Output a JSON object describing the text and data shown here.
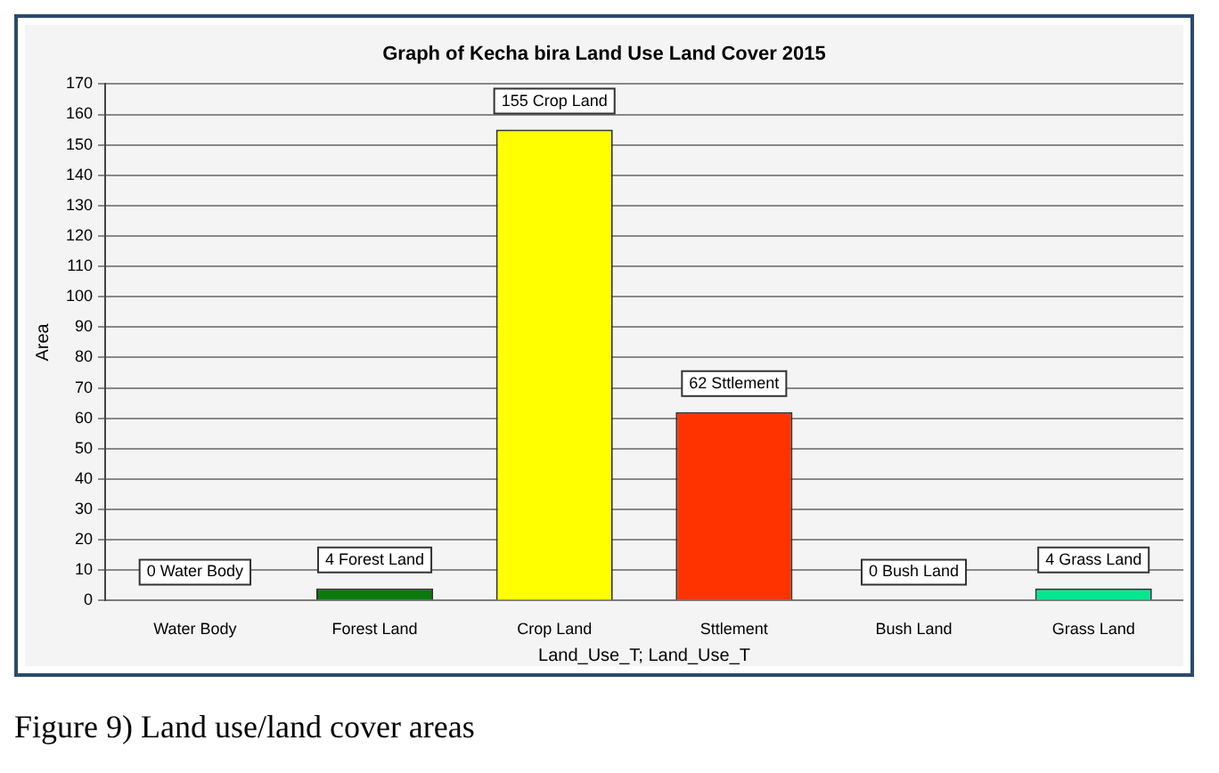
{
  "chart_data": {
    "type": "bar",
    "title": "Graph of Kecha bira Land Use Land Cover 2015",
    "xlabel": "Land_Use_T; Land_Use_T",
    "ylabel": "Area",
    "categories": [
      "Water Body",
      "Forest Land",
      "Crop Land",
      "Sttlement",
      "Bush Land",
      "Grass Land"
    ],
    "values": [
      0,
      4,
      155,
      62,
      0,
      4
    ],
    "colors": [
      "#3366cc",
      "#0b7a0b",
      "#ffff00",
      "#ff3300",
      "#999999",
      "#00e890"
    ],
    "value_labels": [
      "0 Water Body",
      "4 Forest Land",
      "155 Crop Land",
      "62 Sttlement",
      "0 Bush Land",
      "4 Grass Land"
    ],
    "ylim": [
      0,
      170
    ],
    "yticks": [
      0,
      10,
      20,
      30,
      40,
      50,
      60,
      70,
      80,
      90,
      100,
      110,
      120,
      130,
      140,
      150,
      160,
      170
    ],
    "grid": "y",
    "legend": false,
    "annotations": [
      "Figure 9) Land use/land cover areas"
    ]
  }
}
